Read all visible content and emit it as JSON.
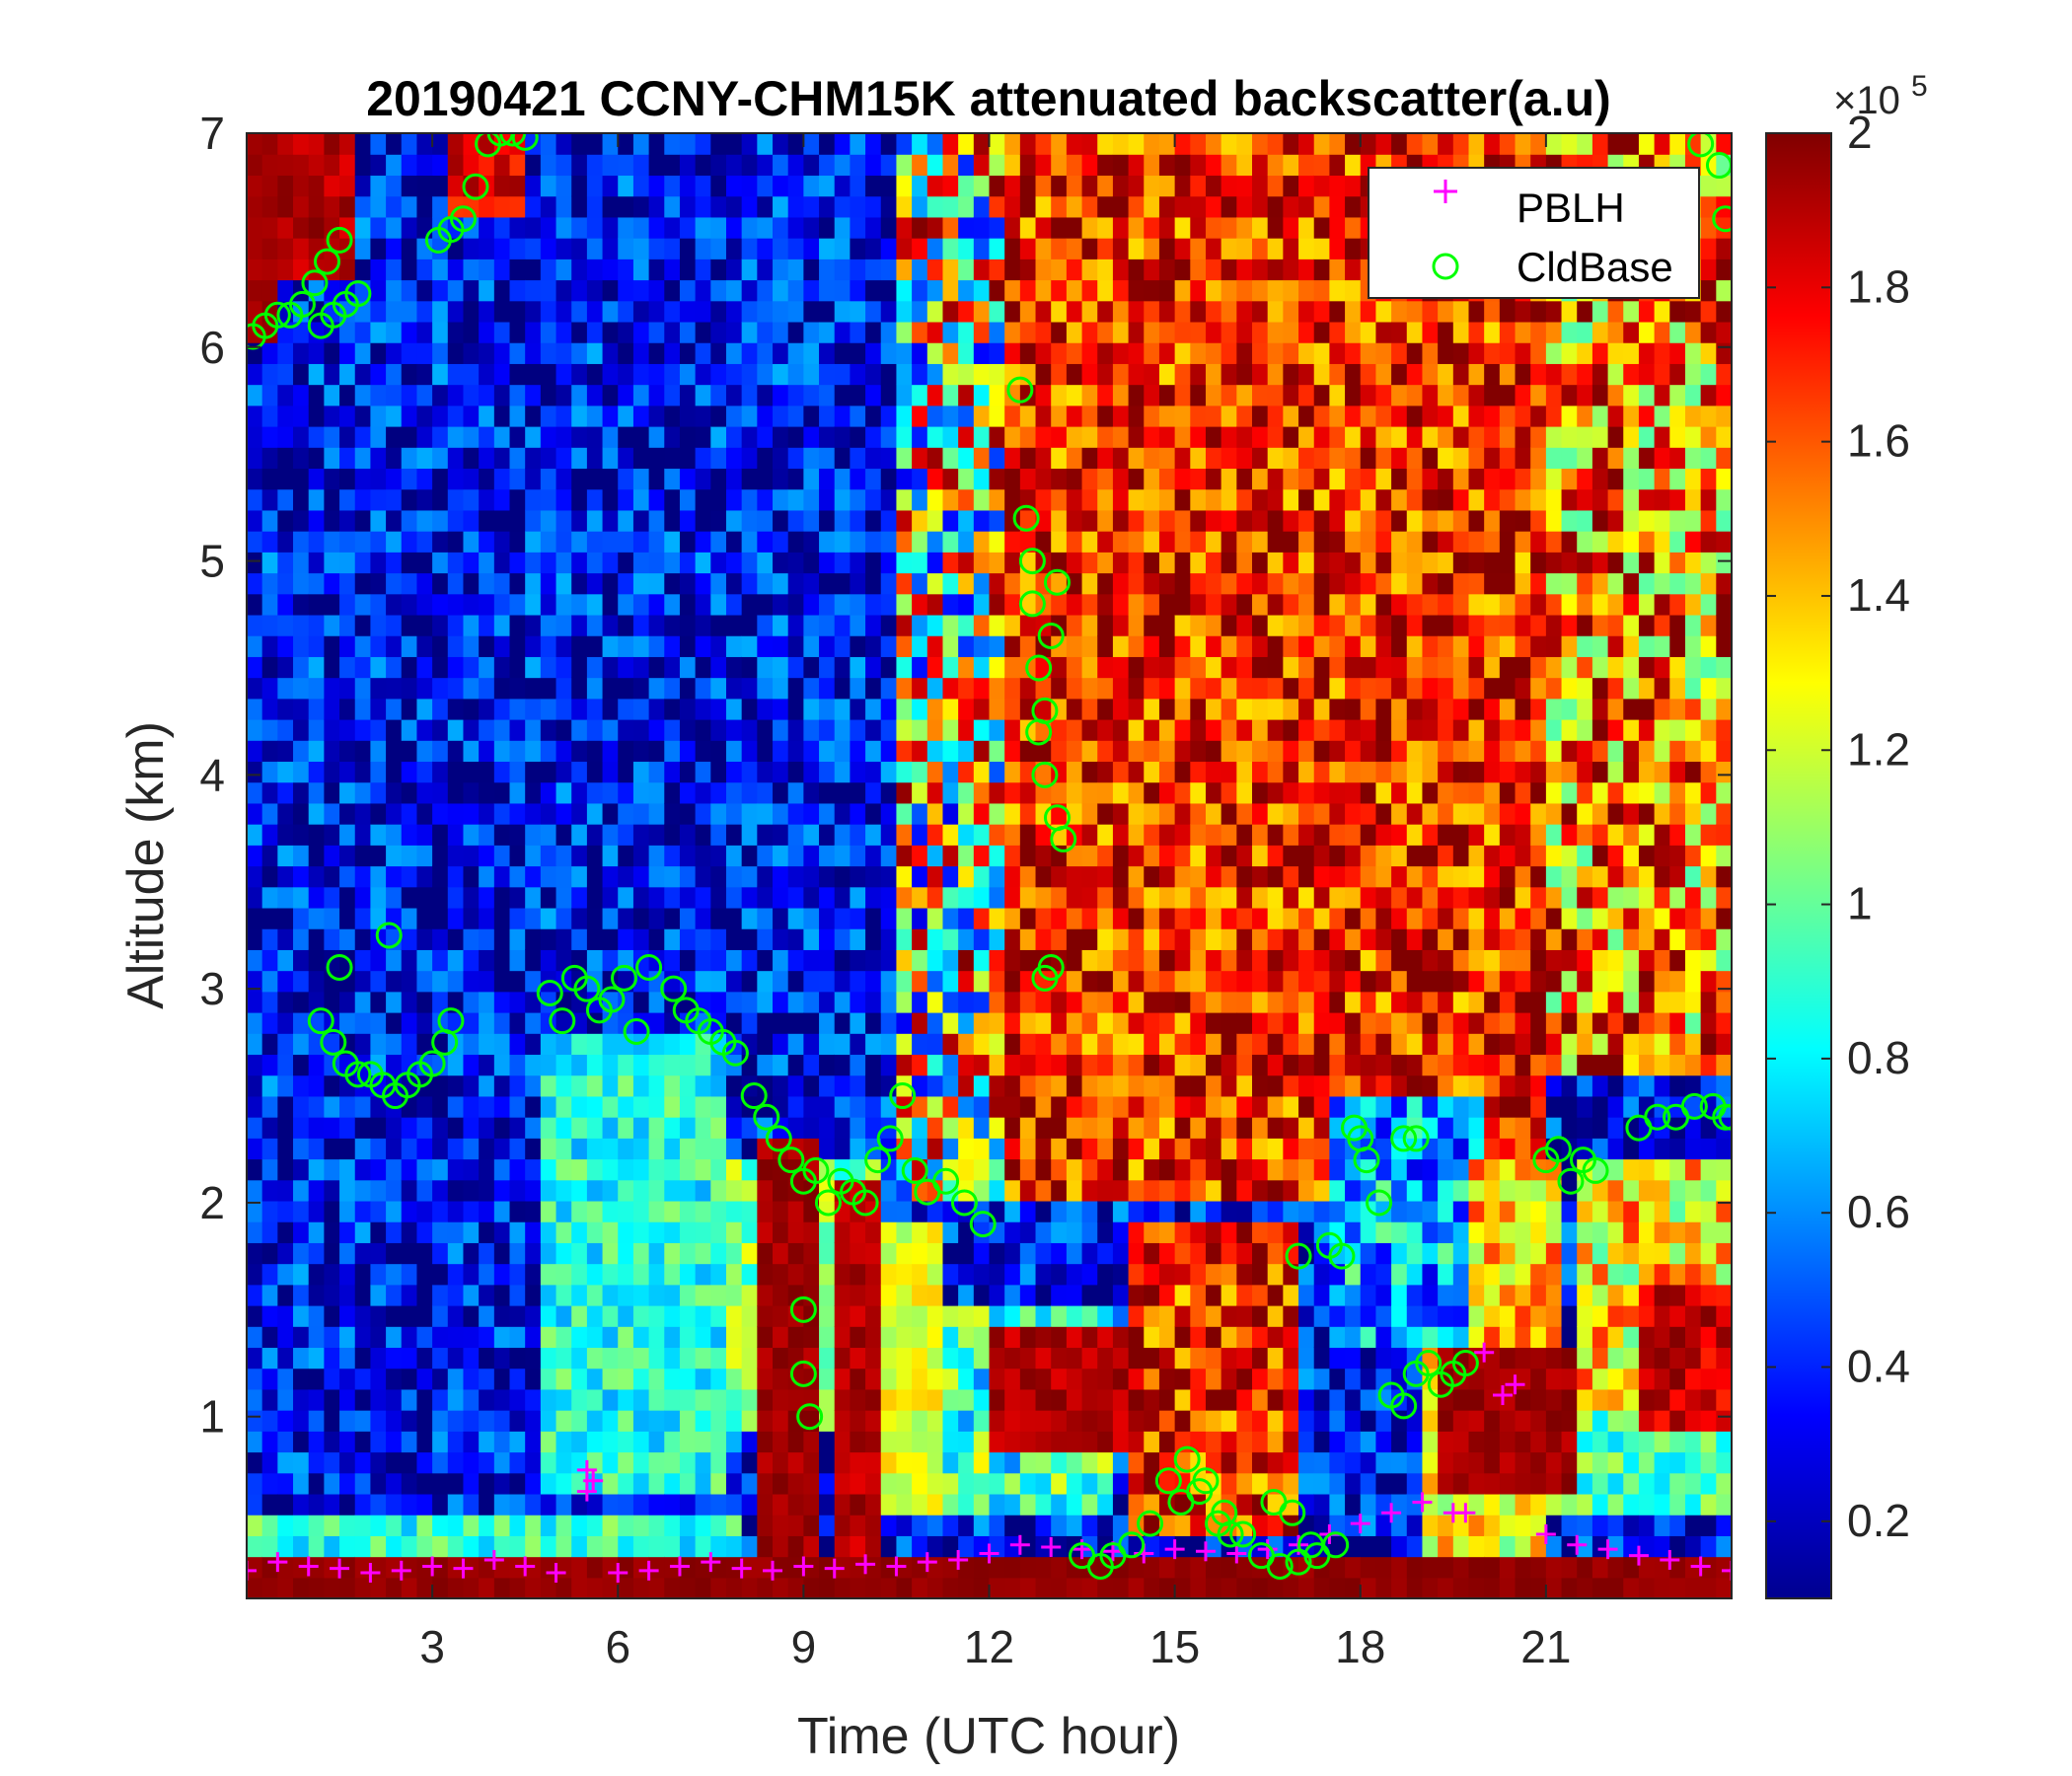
{
  "chart_data": {
    "type": "heatmap",
    "title": "20190421 CCNY-CHM15K attenuated backscatter(a.u)",
    "xlabel": "Time (UTC hour)",
    "ylabel": "Altitude (km)",
    "xlim": [
      0,
      24
    ],
    "ylim": [
      0.15,
      7
    ],
    "xticks": [
      "3",
      "6",
      "9",
      "12",
      "15",
      "18",
      "21"
    ],
    "xtick_values": [
      3,
      6,
      9,
      12,
      15,
      18,
      21
    ],
    "yticks": [
      "1",
      "2",
      "3",
      "4",
      "5",
      "6",
      "7"
    ],
    "ytick_values": [
      1,
      2,
      3,
      4,
      5,
      6,
      7
    ],
    "colorbar": {
      "colormap": "jet",
      "range": [
        0.1,
        2
      ],
      "ticks": [
        "0.2",
        "0.4",
        "0.6",
        "0.8",
        "1",
        "1.2",
        "1.4",
        "1.6",
        "1.8",
        "2"
      ],
      "tick_values": [
        0.2,
        0.4,
        0.6,
        0.8,
        1.0,
        1.2,
        1.4,
        1.6,
        1.8,
        2.0
      ],
      "exponent_prefix": "×10",
      "exponent": "5"
    },
    "legend": {
      "placement": "top-right",
      "entries": [
        {
          "name": "PBLH",
          "marker": "+",
          "color": "#ff00ff"
        },
        {
          "name": "CldBase",
          "marker": "o",
          "color": "#00ff00"
        }
      ]
    },
    "series": [
      {
        "name": "PBLH",
        "color": "#ff00ff",
        "x": [
          0.0,
          0.5,
          1.0,
          1.5,
          2.0,
          2.5,
          3.0,
          3.5,
          4.0,
          4.5,
          5.0,
          5.5,
          5.5,
          5.6,
          6.0,
          6.5,
          7.0,
          7.5,
          8.0,
          8.5,
          9.0,
          9.5,
          10.0,
          10.5,
          11.0,
          11.5,
          12.0,
          12.5,
          13.0,
          13.5,
          14.0,
          14.5,
          15.0,
          15.5,
          16.0,
          16.5,
          17.0,
          17.5,
          18.0,
          18.5,
          19.0,
          19.5,
          19.7,
          20.0,
          20.3,
          20.5,
          21.0,
          21.5,
          22.0,
          22.5,
          23.0,
          23.5,
          24.0
        ],
        "y": [
          0.28,
          0.32,
          0.3,
          0.29,
          0.27,
          0.28,
          0.3,
          0.29,
          0.33,
          0.3,
          0.27,
          0.75,
          0.65,
          0.7,
          0.27,
          0.28,
          0.3,
          0.32,
          0.29,
          0.28,
          0.3,
          0.29,
          0.31,
          0.3,
          0.32,
          0.33,
          0.36,
          0.4,
          0.39,
          0.38,
          0.37,
          0.36,
          0.38,
          0.37,
          0.36,
          0.38,
          0.4,
          0.45,
          0.5,
          0.55,
          0.6,
          0.55,
          0.55,
          1.3,
          1.1,
          1.15,
          0.45,
          0.4,
          0.38,
          0.35,
          0.33,
          0.3,
          0.28
        ]
      },
      {
        "name": "CldBase",
        "color": "#00ff00",
        "x": [
          0.1,
          0.3,
          0.5,
          0.7,
          0.9,
          1.1,
          1.3,
          1.5,
          1.2,
          1.4,
          1.6,
          1.8,
          3.1,
          3.3,
          3.5,
          3.7,
          3.9,
          4.1,
          4.3,
          4.5,
          1.2,
          1.4,
          1.6,
          1.8,
          2.0,
          2.2,
          2.4,
          2.6,
          2.8,
          3.0,
          3.2,
          3.3,
          1.5,
          2.3,
          4.9,
          5.1,
          5.3,
          5.5,
          5.7,
          5.9,
          6.1,
          6.3,
          6.5,
          6.9,
          7.1,
          7.3,
          7.5,
          7.7,
          7.9,
          8.2,
          8.4,
          8.6,
          8.8,
          9.0,
          9.2,
          9.4,
          9.0,
          9.0,
          9.1,
          9.6,
          9.8,
          10.0,
          10.2,
          10.4,
          10.6,
          10.8,
          11.0,
          11.3,
          11.6,
          11.9,
          12.5,
          12.6,
          12.7,
          12.7,
          12.8,
          12.8,
          12.9,
          12.9,
          13.0,
          13.1,
          13.2,
          13.0,
          12.9,
          13.1,
          13.5,
          13.8,
          14.0,
          14.3,
          14.6,
          14.9,
          15.2,
          15.5,
          15.8,
          16.1,
          16.4,
          16.7,
          17.0,
          17.3,
          17.6,
          15.1,
          15.4,
          15.7,
          15.9,
          16.6,
          16.9,
          17.2,
          17.0,
          17.5,
          17.7,
          17.9,
          18.0,
          18.1,
          18.3,
          18.5,
          18.7,
          18.9,
          19.1,
          19.3,
          19.5,
          19.7,
          18.7,
          18.9,
          21.0,
          21.2,
          21.4,
          21.6,
          21.8,
          22.5,
          22.8,
          23.1,
          23.4,
          23.7,
          23.9,
          23.5,
          23.8,
          23.9,
          24.0
        ],
        "y": [
          6.05,
          6.1,
          6.15,
          6.15,
          6.2,
          6.3,
          6.4,
          6.5,
          6.1,
          6.15,
          6.2,
          6.25,
          6.5,
          6.55,
          6.6,
          6.75,
          6.95,
          7.0,
          7.0,
          6.98,
          2.85,
          2.75,
          2.65,
          2.6,
          2.6,
          2.55,
          2.5,
          2.55,
          2.6,
          2.65,
          2.75,
          2.85,
          3.1,
          3.25,
          2.98,
          2.85,
          3.05,
          3.0,
          2.9,
          2.95,
          3.05,
          2.8,
          3.1,
          3.0,
          2.9,
          2.85,
          2.8,
          2.75,
          2.7,
          2.5,
          2.4,
          2.3,
          2.2,
          2.1,
          2.15,
          2.0,
          1.5,
          1.2,
          1.0,
          2.1,
          2.05,
          2.0,
          2.2,
          2.3,
          2.5,
          2.15,
          2.05,
          2.1,
          2.0,
          1.9,
          5.8,
          5.2,
          5.0,
          4.8,
          4.5,
          4.2,
          4.0,
          4.3,
          4.65,
          3.8,
          3.7,
          3.1,
          3.05,
          4.9,
          0.35,
          0.3,
          0.35,
          0.4,
          0.5,
          0.7,
          0.8,
          0.7,
          0.55,
          0.45,
          0.35,
          0.3,
          0.32,
          0.35,
          0.4,
          0.6,
          0.65,
          0.5,
          0.45,
          0.6,
          0.55,
          0.4,
          1.75,
          1.8,
          1.75,
          2.35,
          2.3,
          2.2,
          2.0,
          1.1,
          1.05,
          1.2,
          1.25,
          1.15,
          1.2,
          1.25,
          2.3,
          2.3,
          2.2,
          2.25,
          2.1,
          2.2,
          2.15,
          2.35,
          2.4,
          2.4,
          2.45,
          2.45,
          2.4,
          6.95,
          6.85,
          6.6,
          2.4
        ]
      }
    ]
  }
}
